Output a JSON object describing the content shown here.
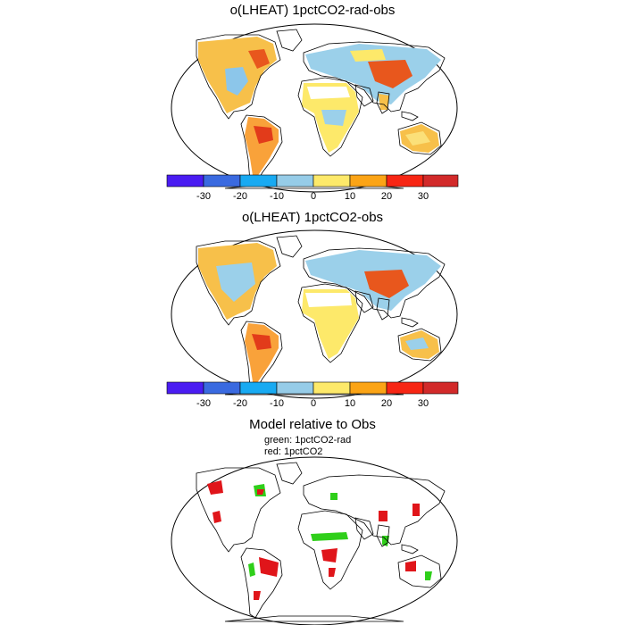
{
  "panels": [
    {
      "title": "o(LHEAT) 1pctCO2-rad-obs"
    },
    {
      "title": "o(LHEAT) 1pctCO2-obs"
    },
    {
      "title": "Model relative to Obs",
      "legend": [
        "green: 1pctCO2-rad",
        "red: 1pctCO2"
      ]
    }
  ],
  "colorbar": {
    "labels": [
      "-30",
      "-20",
      "-10",
      "0",
      "10",
      "20",
      "30"
    ],
    "colors": [
      "#4a1cf2",
      "#3a6ae0",
      "#18aaf2",
      "#96cce8",
      "#fde96a",
      "#fba416",
      "#f72614",
      "#d22a2a"
    ]
  },
  "colors": {
    "land": "#ffffff",
    "wet": "#9bd0ea",
    "dry": "#f7c04a",
    "hot": "#e8571d",
    "green": "#2fcf1a",
    "red": "#e0151a"
  }
}
